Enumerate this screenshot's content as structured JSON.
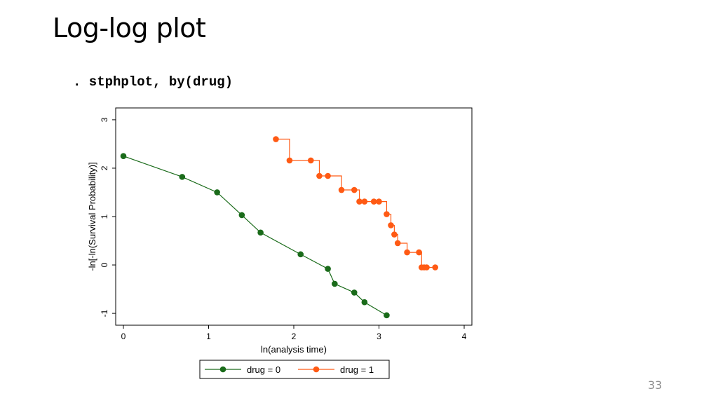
{
  "slide": {
    "title": "Log-log plot",
    "command": ". stphplot, by(drug)",
    "page_number": "33"
  },
  "chart_data": {
    "type": "line",
    "xlabel": "ln(analysis time)",
    "ylabel": "-ln[-ln(Survival Probability)]",
    "xlim": [
      0,
      4
    ],
    "ylim": [
      -1.1,
      3.1
    ],
    "x_ticks": [
      0,
      1,
      2,
      3,
      4
    ],
    "y_ticks": [
      -1,
      0,
      1,
      2,
      3
    ],
    "x_tick_labels": [
      "0",
      "1",
      "2",
      "3",
      "4"
    ],
    "y_tick_labels": [
      "-1",
      "0",
      "1",
      "2",
      "3"
    ],
    "grid": false,
    "legend_position": "bottom",
    "series": [
      {
        "name": "drug = 0",
        "color": "#1a6b1a",
        "step": false,
        "x": [
          0.0,
          0.69,
          1.1,
          1.39,
          1.61,
          2.08,
          2.4,
          2.48,
          2.71,
          2.83,
          3.09
        ],
        "y": [
          2.25,
          1.82,
          1.5,
          1.03,
          0.67,
          0.22,
          -0.08,
          -0.39,
          -0.57,
          -0.77,
          -1.04
        ]
      },
      {
        "name": "drug = 1",
        "color": "#ff5a14",
        "step": true,
        "x": [
          1.79,
          1.95,
          2.2,
          2.3,
          2.4,
          2.56,
          2.71,
          2.77,
          2.83,
          2.94,
          3.0,
          3.09,
          3.14,
          3.18,
          3.22,
          3.33,
          3.47,
          3.5,
          3.53,
          3.56,
          3.66
        ],
        "y": [
          2.6,
          2.16,
          2.16,
          1.84,
          1.84,
          1.55,
          1.55,
          1.31,
          1.31,
          1.31,
          1.31,
          1.05,
          0.82,
          0.63,
          0.45,
          0.26,
          0.26,
          -0.05,
          -0.05,
          -0.05,
          -0.05
        ]
      }
    ]
  }
}
